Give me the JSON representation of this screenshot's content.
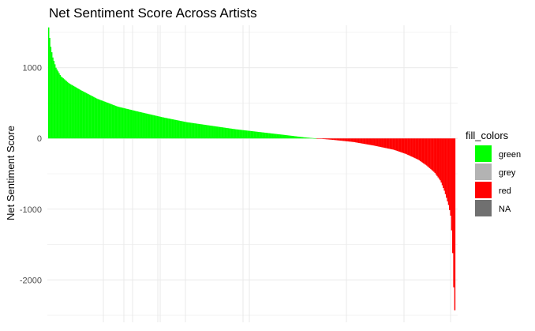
{
  "chart_data": {
    "type": "bar",
    "title": "Net Sentiment Score Across Artists",
    "xlabel": "",
    "ylabel": "Net Sentiment Score",
    "ylim": [
      -2600,
      1600
    ],
    "yticks": [
      1000,
      0,
      -1000,
      -2000
    ],
    "ytick_labels": [
      "1000",
      "0",
      "-1000",
      "-2000"
    ],
    "grid": true,
    "legend_position": "right",
    "legend": {
      "title": "fill_colors",
      "entries": [
        {
          "label": "green",
          "color": "#00ff00"
        },
        {
          "label": "grey",
          "color": "#b3b3b3"
        },
        {
          "label": "red",
          "color": "#ff0000"
        },
        {
          "label": "NA",
          "color": "#707070"
        }
      ]
    },
    "sorted_descending": true,
    "profile_points": [
      [
        0,
        1570
      ],
      [
        0.002,
        1450
      ],
      [
        0.005,
        1300
      ],
      [
        0.01,
        1150
      ],
      [
        0.018,
        1000
      ],
      [
        0.03,
        880
      ],
      [
        0.05,
        780
      ],
      [
        0.08,
        680
      ],
      [
        0.12,
        560
      ],
      [
        0.17,
        450
      ],
      [
        0.22,
        380
      ],
      [
        0.28,
        300
      ],
      [
        0.34,
        230
      ],
      [
        0.4,
        180
      ],
      [
        0.46,
        130
      ],
      [
        0.52,
        90
      ],
      [
        0.58,
        50
      ],
      [
        0.63,
        15
      ],
      [
        0.67,
        -5
      ],
      [
        0.7,
        -20
      ],
      [
        0.75,
        -50
      ],
      [
        0.8,
        -100
      ],
      [
        0.85,
        -160
      ],
      [
        0.88,
        -220
      ],
      [
        0.91,
        -300
      ],
      [
        0.93,
        -380
      ],
      [
        0.95,
        -480
      ],
      [
        0.965,
        -600
      ],
      [
        0.975,
        -750
      ],
      [
        0.985,
        -950
      ],
      [
        0.99,
        -1100
      ],
      [
        0.994,
        -1450
      ],
      [
        0.997,
        -2050
      ],
      [
        1.0,
        -2430
      ]
    ]
  }
}
